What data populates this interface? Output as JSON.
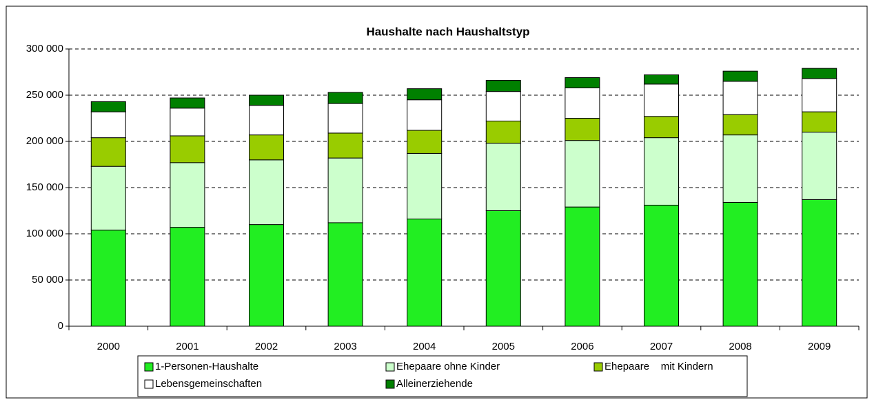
{
  "chart_data": {
    "type": "stacked_bar",
    "title": "Haushalte nach Haushaltstyp",
    "categories": [
      "2000",
      "2001",
      "2002",
      "2003",
      "2004",
      "2005",
      "2006",
      "2007",
      "2008",
      "2009"
    ],
    "series": [
      {
        "name": "1-Personen-Haushalte",
        "color": "#22ee22",
        "values": [
          104000,
          107000,
          110000,
          112000,
          116000,
          125000,
          129000,
          131000,
          134000,
          137000
        ]
      },
      {
        "name": "Ehepaare ohne Kinder",
        "color": "#ccffcc",
        "values": [
          69000,
          70000,
          70000,
          70000,
          71000,
          73000,
          72000,
          73000,
          73000,
          73000
        ]
      },
      {
        "name": "Ehepaare    mit Kindern",
        "color": "#99cc00",
        "values": [
          31000,
          29000,
          27000,
          27000,
          25000,
          24000,
          24000,
          23000,
          22000,
          22000
        ]
      },
      {
        "name": "Lebensgemeinschaften",
        "color": "#ffffff",
        "values": [
          28000,
          30000,
          32000,
          32000,
          33000,
          32000,
          33000,
          35000,
          36000,
          36000
        ]
      },
      {
        "name": "Alleinerziehende",
        "color": "#008000",
        "values": [
          11000,
          11000,
          11000,
          12000,
          12000,
          12000,
          11000,
          10000,
          11000,
          11000
        ]
      }
    ],
    "ylim": [
      0,
      300000
    ],
    "yticks": [
      0,
      {
        "value": 50000,
        "label": "50 000"
      },
      {
        "value": 100000,
        "label": "100 000"
      },
      {
        "value": 150000,
        "label": "150 000"
      },
      {
        "value": 200000,
        "label": "200 000"
      },
      {
        "value": 250000,
        "label": "250 000"
      },
      {
        "value": 300000,
        "label": "300 000"
      }
    ],
    "grid": true
  }
}
